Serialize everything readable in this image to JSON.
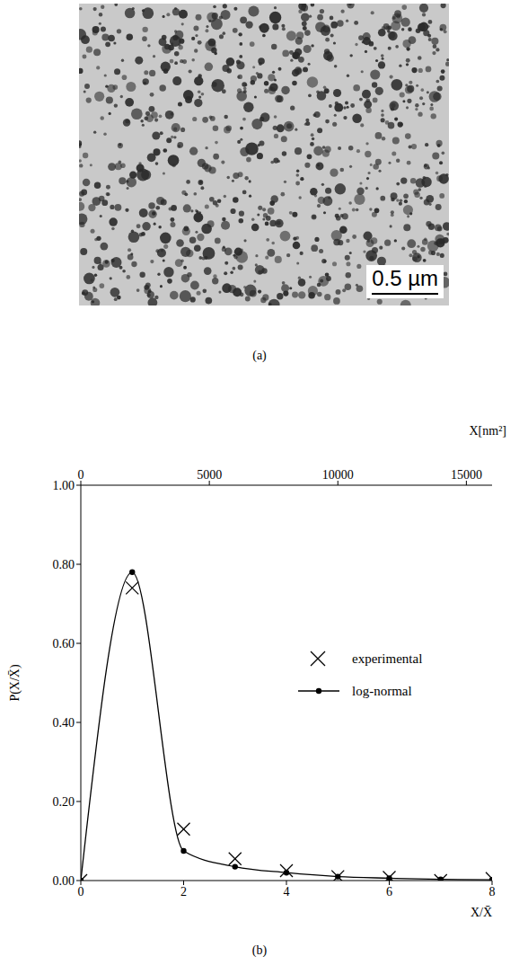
{
  "image": {
    "caption": "(a)",
    "scale_bar": "0.5 µm"
  },
  "chart_data": {
    "type": "line",
    "caption": "(b)",
    "xlabel": "X/X̄",
    "ylabel": "P(X/X̄)",
    "x2label": "X[nm²]",
    "x": [
      0,
      1,
      2,
      3,
      4,
      5,
      6,
      7,
      8
    ],
    "xlim": [
      0,
      8
    ],
    "xticks": [
      0,
      2,
      4,
      6,
      8
    ],
    "x2lim": [
      0,
      16000
    ],
    "x2ticks": [
      0,
      5000,
      10000,
      15000
    ],
    "ylim": [
      0,
      1.0
    ],
    "yticks": [
      {
        "value": 0,
        "label": "0.00"
      },
      {
        "value": 0.2,
        "label": "0.20"
      },
      {
        "value": 0.4,
        "label": "0.40"
      },
      {
        "value": 0.6,
        "label": "0.60"
      },
      {
        "value": 0.8,
        "label": "0.80"
      },
      {
        "value": 1.0,
        "label": "1.00"
      }
    ],
    "grid": false,
    "legend": "right",
    "series": [
      {
        "name": "experimental",
        "type": "scatter",
        "color": "#000000",
        "marker": "x",
        "values": [
          0.0,
          0.74,
          0.13,
          0.055,
          0.025,
          0.01,
          0.008,
          0.0,
          0.005
        ]
      },
      {
        "name": "log-normal",
        "type": "line",
        "color": "#000000",
        "marker": "circle",
        "line_style": "solid",
        "values": [
          0.0,
          0.78,
          0.075,
          0.035,
          0.02,
          0.01,
          0.006,
          0.003,
          0.002
        ]
      }
    ]
  }
}
